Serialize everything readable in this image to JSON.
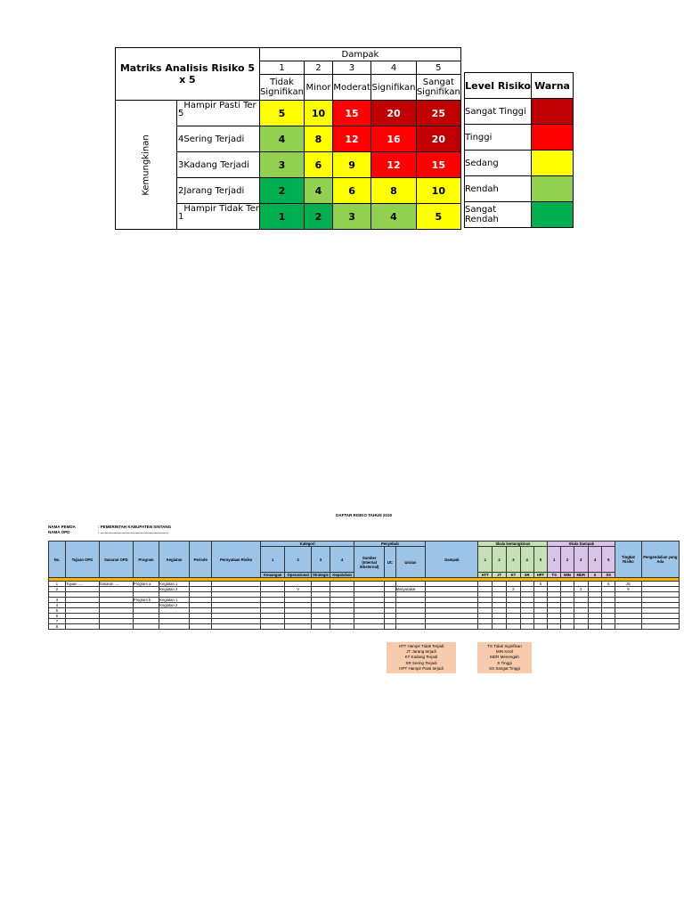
{
  "matrix": {
    "title": "Matriks Analisis Risiko 5 x 5",
    "impact_header": "Dampak",
    "likelihood_header": "Kemungkinan",
    "impact_numbers": [
      "1",
      "2",
      "3",
      "4",
      "5"
    ],
    "impact_labels": [
      "Tidak Signifikan",
      "Minor",
      "Moderat",
      "Signifikan",
      "Sangat Signifikan"
    ],
    "rows": [
      {
        "num": "5",
        "label": "Hampir Pasti Ter",
        "values": [
          "5",
          "10",
          "15",
          "20",
          "25"
        ],
        "colors": [
          "yl",
          "yl",
          "rd",
          "dr",
          "dr"
        ]
      },
      {
        "num": "4",
        "label": "Sering Terjadi",
        "values": [
          "4",
          "8",
          "12",
          "16",
          "20"
        ],
        "colors": [
          "lg",
          "yl",
          "rd",
          "rd",
          "dr"
        ]
      },
      {
        "num": "3",
        "label": "Kadang Terjadi",
        "values": [
          "3",
          "6",
          "9",
          "12",
          "15"
        ],
        "colors": [
          "lg",
          "yl",
          "yl",
          "rd",
          "rd"
        ]
      },
      {
        "num": "2",
        "label": "Jarang Terjadi",
        "values": [
          "2",
          "4",
          "6",
          "8",
          "10"
        ],
        "colors": [
          "cg",
          "lg",
          "yl",
          "yl",
          "yl"
        ]
      },
      {
        "num": "1",
        "label": "Hampir Tidak Ter",
        "values": [
          "1",
          "2",
          "3",
          "4",
          "5"
        ],
        "colors": [
          "cg",
          "cg",
          "lg",
          "lg",
          "yl"
        ]
      }
    ]
  },
  "legend": {
    "level_header": "Level Risiko",
    "color_header": "Warna",
    "levels": [
      {
        "label": "Sangat Tinggi",
        "color": "#c00000"
      },
      {
        "label": "Tinggi",
        "color": "#ff0000"
      },
      {
        "label": "Sedang",
        "color": "#ffff00"
      },
      {
        "label": "Rendah",
        "color": "#92d050"
      },
      {
        "label": "Sangat Rendah",
        "color": "#00b050"
      }
    ]
  },
  "register": {
    "title": "DAFTAR RISIKO TAHUN 2019",
    "pemda_key": "NAMA PEMDA",
    "pemda_value": ": PEMERINTAH KABUPATEN SINTANG",
    "opd_key": "NAMA OPD",
    "opd_value": ": .............................................................",
    "headers": {
      "no": "No.",
      "tujuan": "Tujuan OPD",
      "sasaran": "Sasaran OPD",
      "program": "Program",
      "kegiatan": "Kegiatan",
      "periode": "Periode",
      "pernyataan": "Pernyataan Risiko",
      "kategori": "Kategori",
      "kategori_nums": [
        "1",
        "2",
        "3",
        "4"
      ],
      "kategori_subs": [
        "Keuangan",
        "Operasional",
        "Strategis",
        "Kepatuhan"
      ],
      "penyebab": "Penyebab",
      "sumber": "Sumber (Internal /Eksternal)",
      "uc": "UC",
      "uraian": "Uraian",
      "dampak": "Dampak",
      "skala_kemungkinan": "Skala kemungkinan",
      "kem_nums": [
        "1",
        "2",
        "3",
        "4",
        "5"
      ],
      "kem_subs": [
        "HTT",
        "JT",
        "KT",
        "SR",
        "HPT"
      ],
      "skala_dampak": "Skala Dampak",
      "dam_nums": [
        "1",
        "2",
        "3",
        "4",
        "5"
      ],
      "dam_subs": [
        "TS",
        "MIN",
        "MDR",
        "S",
        "SS"
      ],
      "tingkat": "Tingkat Risiko",
      "pengendalian": "Pengendalian yang Ada"
    },
    "rows": [
      {
        "no": "1",
        "tujuan": "Tujuan .....",
        "sasaran": "Sasaran .....",
        "program": "Program a",
        "kegiatan": "Kegiatan 1",
        "kat2": "",
        "uraian": "",
        "kem5": "5",
        "dam5": "5",
        "tingkat": "25"
      },
      {
        "no": "2",
        "tujuan": "",
        "sasaran": "",
        "program": "",
        "kegiatan": "Kegiatan 2",
        "kat2": "V",
        "uraian": "Masyarakat",
        "kem3": "3",
        "dam3": "3",
        "tingkat": "9"
      },
      {
        "no": "",
        "tujuan": "",
        "sasaran": "",
        "program": "",
        "kegiatan": ""
      },
      {
        "no": "3",
        "tujuan": "",
        "sasaran": "",
        "program": "Program b",
        "kegiatan": "Kegiatan 1"
      },
      {
        "no": "4",
        "tujuan": "",
        "sasaran": "",
        "program": "",
        "kegiatan": "Kegiatan 2"
      },
      {
        "no": "5",
        "kegiatan": ""
      },
      {
        "no": "6",
        "kegiatan": ""
      },
      {
        "no": "7",
        "kegiatan": ""
      },
      {
        "no": "8",
        "kegiatan": ""
      }
    ],
    "notes_left": [
      "HTT Hampir Tidak Terjadi",
      "JT Jarang terjadi",
      "KT Kadang Terjadi",
      "SR Sering Terjadi",
      "HPT    Hampir Pasti terjadi"
    ],
    "notes_right": [
      "TS Tidak Signifikan",
      "MIN Kecil",
      "MDR Menengah",
      "S Tinggi",
      "SS Sangat Tinggi"
    ]
  }
}
